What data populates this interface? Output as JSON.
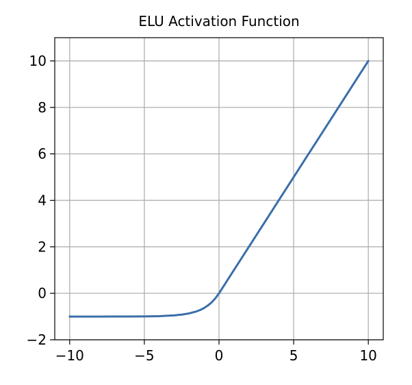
{
  "chart_data": {
    "type": "line",
    "title": "ELU Activation Function",
    "xlabel": "",
    "ylabel": "",
    "xlim": [
      -11,
      11
    ],
    "ylim": [
      -2,
      11
    ],
    "grid": true,
    "x_ticks": [
      -10,
      -5,
      0,
      5,
      10
    ],
    "x_tick_labels": [
      "−10",
      "−5",
      "0",
      "5",
      "10"
    ],
    "y_ticks": [
      -2,
      0,
      2,
      4,
      6,
      8,
      10
    ],
    "y_tick_labels": [
      "−2",
      "0",
      "2",
      "4",
      "6",
      "8",
      "10"
    ],
    "series": [
      {
        "color": "#3a6ea8",
        "x": [
          -10,
          -9,
          -8,
          -7,
          -6,
          -5,
          -4,
          -3,
          -2.5,
          -2,
          -1.5,
          -1.25,
          -1,
          -0.75,
          -0.5,
          -0.25,
          0,
          1,
          2,
          3,
          4,
          5,
          6,
          7,
          8,
          9,
          10
        ],
        "y": [
          -0.99995,
          -0.99988,
          -0.99966,
          -0.99909,
          -0.99752,
          -0.99326,
          -0.98168,
          -0.95021,
          -0.91792,
          -0.86466,
          -0.77687,
          -0.7135,
          -0.63212,
          -0.52763,
          -0.39347,
          -0.2212,
          0,
          1,
          2,
          3,
          4,
          5,
          6,
          7,
          8,
          9,
          10
        ]
      }
    ]
  }
}
